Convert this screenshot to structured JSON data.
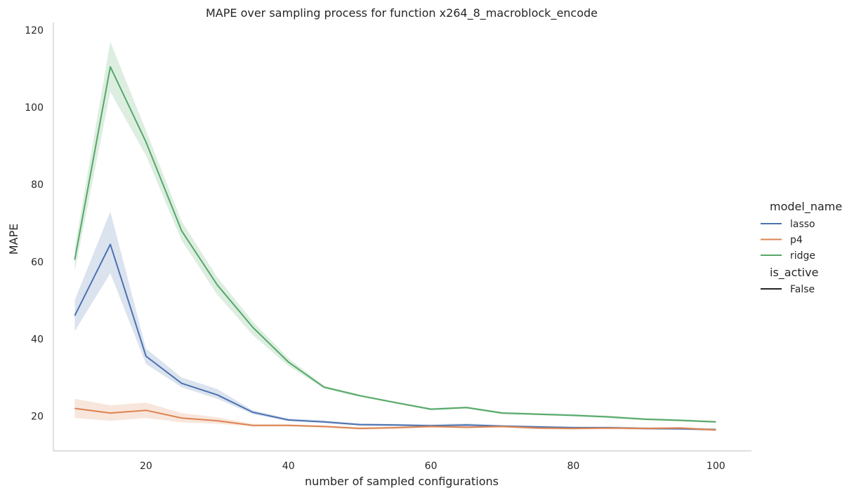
{
  "chart_data": {
    "type": "line",
    "title": "MAPE over sampling process for function x264_8_macroblock_encode",
    "xlabel": "number of sampled configurations",
    "ylabel": "MAPE",
    "xlim": [
      7,
      105
    ],
    "ylim": [
      11,
      122
    ],
    "xticks": [
      20,
      40,
      60,
      80,
      100
    ],
    "yticks": [
      20,
      40,
      60,
      80,
      100,
      120
    ],
    "grid": false,
    "legend_placement": "right",
    "legend": {
      "hue_title": "model_name",
      "style_title": "is_active",
      "style_entries": [
        {
          "name": "False",
          "color": "#262626"
        }
      ]
    },
    "x": [
      10,
      15,
      20,
      25,
      30,
      35,
      40,
      45,
      50,
      55,
      60,
      65,
      70,
      75,
      80,
      85,
      90,
      95,
      100
    ],
    "series": [
      {
        "name": "lasso",
        "color": "#4c72b0",
        "values": [
          46,
          64.5,
          35.5,
          28.5,
          25.5,
          21,
          19,
          18.5,
          17.8,
          17.7,
          17.5,
          17.7,
          17.4,
          17.2,
          17,
          17,
          16.8,
          16.7,
          16.5
        ],
        "lower": [
          42,
          57,
          33.5,
          27.5,
          24.5,
          20.5,
          18.7,
          18.2,
          17.5,
          17.4,
          17.2,
          17.3,
          17.1,
          16.9,
          16.7,
          16.7,
          16.5,
          16.4,
          16.2
        ],
        "upper": [
          50,
          73,
          37.5,
          30,
          27,
          21.5,
          19.4,
          18.9,
          18.1,
          18,
          17.9,
          18.1,
          17.7,
          17.5,
          17.3,
          17.3,
          17.1,
          17,
          16.8
        ]
      },
      {
        "name": "p4",
        "color": "#dd8452",
        "values": [
          22,
          20.8,
          21.5,
          19.5,
          18.8,
          17.6,
          17.6,
          17.3,
          16.8,
          17,
          17.3,
          17.1,
          17.3,
          16.9,
          16.8,
          16.9,
          16.8,
          16.9,
          16.4
        ],
        "lower": [
          19.5,
          18.8,
          19.5,
          18.4,
          18,
          17.3,
          17.3,
          17,
          16.5,
          16.7,
          17,
          16.8,
          17,
          16.6,
          16.5,
          16.6,
          16.5,
          16.6,
          16.1
        ],
        "upper": [
          24.5,
          22.8,
          23.5,
          20.8,
          19.7,
          18,
          17.9,
          17.6,
          17.1,
          17.3,
          17.6,
          17.4,
          17.6,
          17.2,
          17.1,
          17.2,
          17.1,
          17.2,
          16.7
        ]
      },
      {
        "name": "ridge",
        "color": "#55a868",
        "values": [
          60.5,
          110.5,
          91,
          68,
          54,
          43,
          34,
          27.5,
          25.3,
          23.5,
          21.8,
          22.2,
          20.8,
          20.5,
          20.2,
          19.8,
          19.2,
          18.9,
          18.5
        ],
        "lower": [
          57.5,
          104,
          87.5,
          65.5,
          51.5,
          41,
          33,
          27.1,
          25,
          23.2,
          21.5,
          21.9,
          20.5,
          20.2,
          19.9,
          19.5,
          18.9,
          18.6,
          18.2
        ],
        "upper": [
          63.5,
          117,
          94,
          70.5,
          56,
          44.5,
          35,
          27.9,
          25.6,
          23.8,
          22.1,
          22.5,
          21.1,
          20.8,
          20.5,
          20.1,
          19.5,
          19.2,
          18.8
        ]
      }
    ]
  }
}
